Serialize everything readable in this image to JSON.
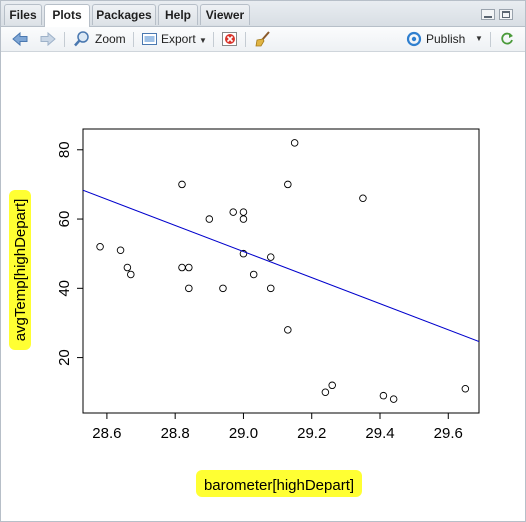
{
  "tabs": [
    {
      "label": "Files",
      "active": false
    },
    {
      "label": "Plots",
      "active": true
    },
    {
      "label": "Packages",
      "active": false
    },
    {
      "label": "Help",
      "active": false
    },
    {
      "label": "Viewer",
      "active": false
    }
  ],
  "toolbar": {
    "zoom_label": "Zoom",
    "export_label": "Export",
    "publish_label": "Publish"
  },
  "icons": {
    "back": "arrow-left-icon",
    "forward": "arrow-right-icon",
    "zoom": "zoom-icon",
    "export": "export-icon",
    "remove": "remove-plot-icon",
    "clear": "broom-icon",
    "publish": "publish-icon"
  },
  "colors": {
    "regression_line": "#0000cc",
    "highlight": "#ffff33"
  },
  "chart_data": {
    "type": "scatter",
    "xlabel": "barometer[highDepart]",
    "ylabel": "avgTemp[highDepart]",
    "xlim": [
      28.53,
      29.69
    ],
    "ylim": [
      4,
      86
    ],
    "x_ticks": [
      "28.6",
      "28.8",
      "29.0",
      "29.2",
      "29.4",
      "29.6"
    ],
    "x_tick_values": [
      28.6,
      28.8,
      29.0,
      29.2,
      29.4,
      29.6
    ],
    "y_ticks": [
      "20",
      "40",
      "60",
      "80"
    ],
    "y_tick_values": [
      20,
      40,
      60,
      80
    ],
    "grid": false,
    "points": [
      {
        "x": 28.58,
        "y": 52
      },
      {
        "x": 28.64,
        "y": 51
      },
      {
        "x": 28.66,
        "y": 46
      },
      {
        "x": 28.67,
        "y": 44
      },
      {
        "x": 28.82,
        "y": 70
      },
      {
        "x": 28.82,
        "y": 46
      },
      {
        "x": 28.84,
        "y": 46
      },
      {
        "x": 28.84,
        "y": 40
      },
      {
        "x": 28.9,
        "y": 60
      },
      {
        "x": 28.94,
        "y": 40
      },
      {
        "x": 28.97,
        "y": 62
      },
      {
        "x": 29.0,
        "y": 62
      },
      {
        "x": 29.0,
        "y": 60
      },
      {
        "x": 29.0,
        "y": 50
      },
      {
        "x": 29.03,
        "y": 44
      },
      {
        "x": 29.08,
        "y": 49
      },
      {
        "x": 29.08,
        "y": 40
      },
      {
        "x": 29.13,
        "y": 70
      },
      {
        "x": 29.13,
        "y": 28
      },
      {
        "x": 29.15,
        "y": 82
      },
      {
        "x": 29.24,
        "y": 10
      },
      {
        "x": 29.26,
        "y": 12
      },
      {
        "x": 29.35,
        "y": 66
      },
      {
        "x": 29.41,
        "y": 9
      },
      {
        "x": 29.44,
        "y": 8
      },
      {
        "x": 29.65,
        "y": 11
      }
    ],
    "regression_line": {
      "intercept": 1142.47,
      "slope": -37.65
    }
  }
}
